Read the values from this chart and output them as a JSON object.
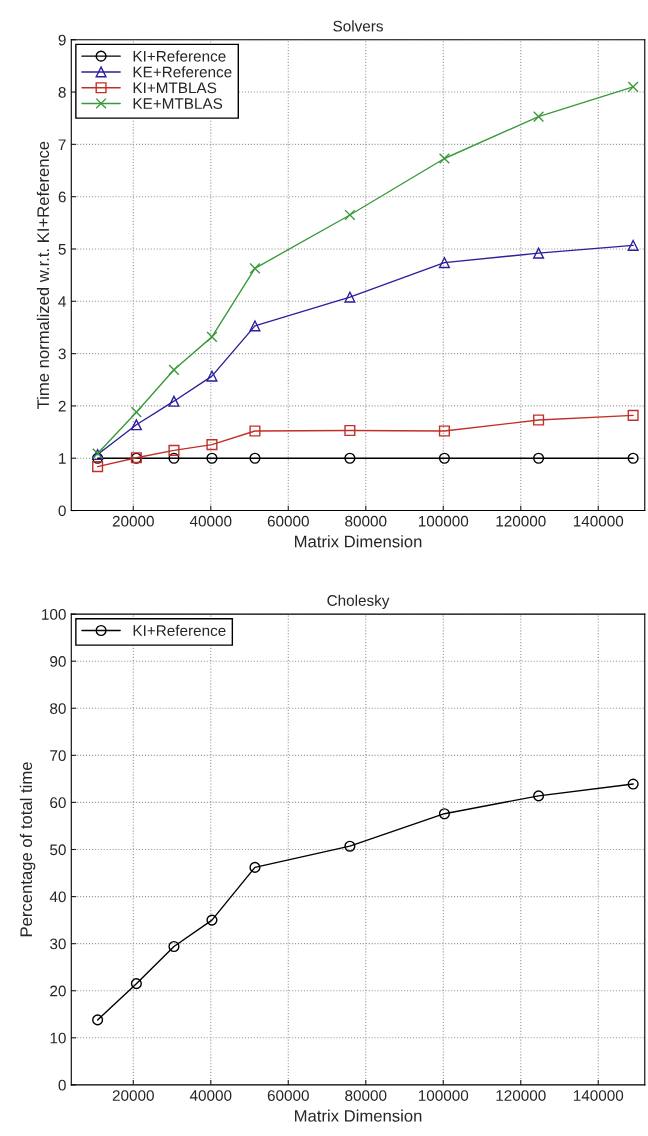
{
  "chart_data": [
    {
      "type": "line",
      "title": "Solvers",
      "xlabel": "Matrix Dimension",
      "ylabel": "Time normalized w.r.t. KI+Reference",
      "x": [
        10800,
        20800,
        30500,
        40300,
        51400,
        75900,
        100300,
        124600,
        149000
      ],
      "xlim": [
        4000,
        152000
      ],
      "xticks": [
        20000,
        40000,
        60000,
        80000,
        100000,
        120000,
        140000
      ],
      "ylim": [
        0,
        9
      ],
      "yticks": [
        0,
        1,
        2,
        3,
        4,
        5,
        6,
        7,
        8,
        9
      ],
      "grid": true,
      "legend": "top left",
      "line_style": "solid",
      "series": [
        {
          "name": "KI+Reference",
          "color": "#000000",
          "marker": "circle",
          "values": [
            1,
            1,
            1,
            1,
            1,
            1,
            1,
            1,
            1
          ]
        },
        {
          "name": "KE+Reference",
          "color": "#2b1f9c",
          "marker": "triangle",
          "values": [
            1.07,
            1.64,
            2.09,
            2.57,
            3.53,
            4.08,
            4.74,
            4.92,
            5.07
          ]
        },
        {
          "name": "KI+MTBLAS",
          "color": "#c0302a",
          "marker": "square",
          "values": [
            0.84,
            1.01,
            1.15,
            1.26,
            1.52,
            1.53,
            1.52,
            1.73,
            1.82
          ]
        },
        {
          "name": "KE+MTBLAS",
          "color": "#3a9a3a",
          "marker": "cross",
          "values": [
            1.09,
            1.88,
            2.69,
            3.32,
            4.63,
            5.65,
            6.73,
            7.53,
            8.1
          ]
        }
      ]
    },
    {
      "type": "line",
      "title": "Cholesky",
      "xlabel": "Matrix Dimension",
      "ylabel": "Percentage of total time",
      "x": [
        10800,
        20800,
        30500,
        40300,
        51400,
        75900,
        100300,
        124600,
        149000
      ],
      "xlim": [
        4000,
        152000
      ],
      "xticks": [
        20000,
        40000,
        60000,
        80000,
        100000,
        120000,
        140000
      ],
      "ylim": [
        0,
        100
      ],
      "yticks": [
        0,
        10,
        20,
        30,
        40,
        50,
        60,
        70,
        80,
        90,
        100
      ],
      "grid": true,
      "legend": "top left",
      "line_style": "solid",
      "series": [
        {
          "name": "KI+Reference",
          "color": "#000000",
          "marker": "circle",
          "values": [
            13.8,
            21.5,
            29.4,
            35.0,
            46.2,
            50.7,
            57.6,
            61.4,
            63.9
          ]
        }
      ]
    }
  ]
}
